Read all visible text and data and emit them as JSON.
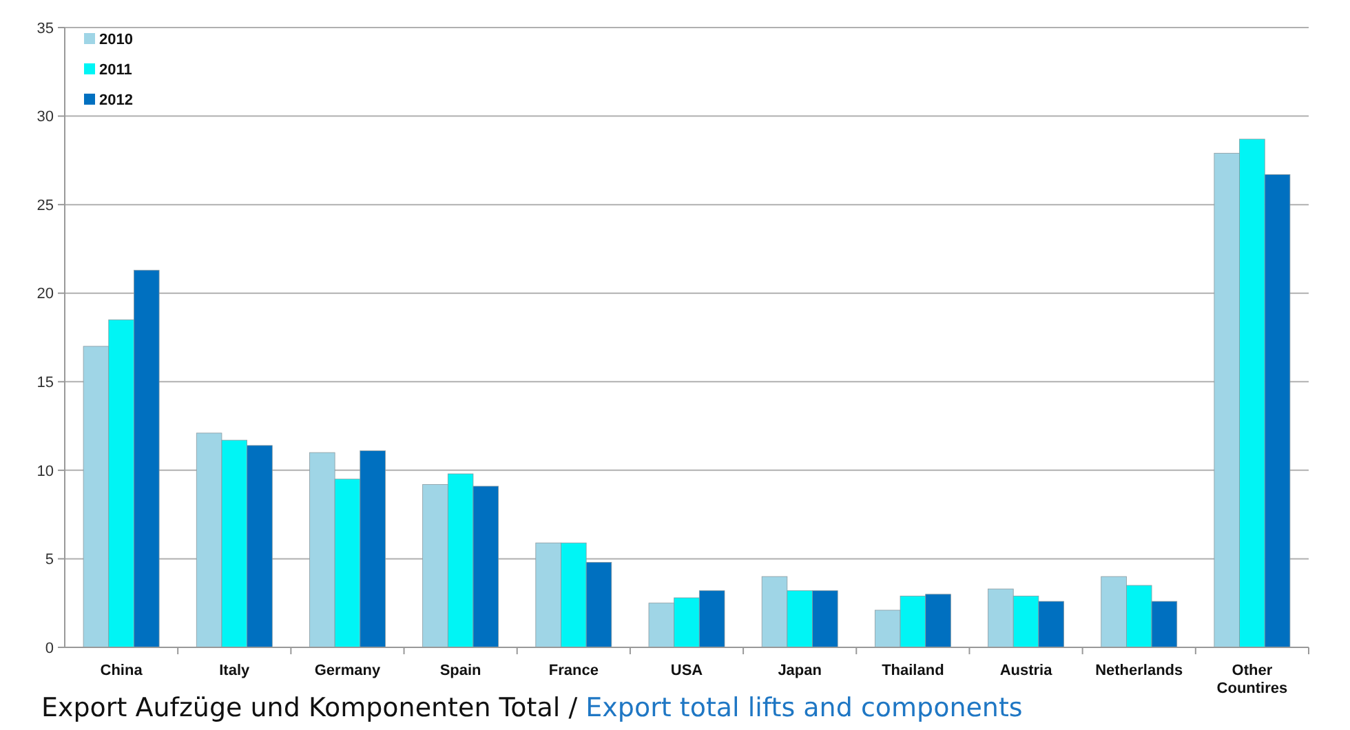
{
  "chart_data": {
    "type": "bar",
    "categories": [
      "China",
      "Italy",
      "Germany",
      "Spain",
      "France",
      "USA",
      "Japan",
      "Thailand",
      "Austria",
      "Netherlands",
      "Other Countires"
    ],
    "series": [
      {
        "name": "2010",
        "color": "#9fd5e6",
        "values": [
          17.0,
          12.1,
          11.0,
          9.2,
          5.9,
          2.5,
          4.0,
          2.1,
          3.3,
          4.0,
          27.9
        ]
      },
      {
        "name": "2011",
        "color": "#00f5f5",
        "values": [
          18.5,
          11.7,
          9.5,
          9.8,
          5.9,
          2.8,
          3.2,
          2.9,
          2.9,
          3.5,
          28.7
        ]
      },
      {
        "name": "2012",
        "color": "#0070c0",
        "values": [
          21.3,
          11.4,
          11.1,
          9.1,
          4.8,
          3.2,
          3.2,
          3.0,
          2.6,
          2.6,
          26.7
        ]
      }
    ],
    "ylim": [
      0,
      35
    ],
    "yticks": [
      0,
      5,
      10,
      15,
      20,
      25,
      30,
      35
    ],
    "grid": "y",
    "legend": "top left",
    "annotations": [
      "Export Aufzüge und Komponenten Total /",
      "Export total lifts and components"
    ]
  }
}
